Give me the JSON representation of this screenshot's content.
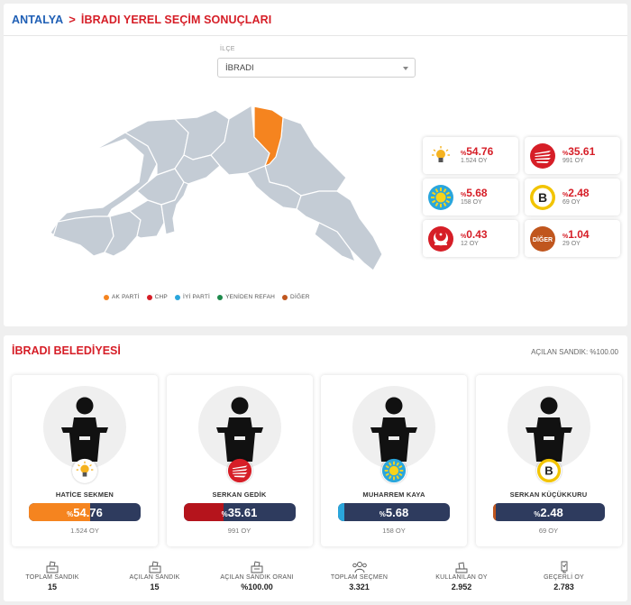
{
  "breadcrumb": {
    "city": "ANTALYA",
    "separator": ">",
    "title": "İBRADI YEREL SEÇİM SONUÇLARI"
  },
  "district": {
    "label": "İLÇE",
    "value": "İBRADI"
  },
  "legend": [
    {
      "label": "AK PARTİ",
      "color": "#f5841f"
    },
    {
      "label": "CHP",
      "color": "#d61e27"
    },
    {
      "label": "İYİ PARTİ",
      "color": "#2aa6dc"
    },
    {
      "label": "YENİDEN REFAH",
      "color": "#1e8a4c"
    },
    {
      "label": "DİĞER",
      "color": "#c0561e"
    }
  ],
  "parties": [
    {
      "pct": "54.76",
      "pct_prefix": "%",
      "votes": "1.524 OY",
      "logo": "ak-parti-logo",
      "color": "#f5841f"
    },
    {
      "pct": "35.61",
      "pct_prefix": "%",
      "votes": "991 OY",
      "logo": "chp-logo",
      "color": "#d61e27"
    },
    {
      "pct": "5.68",
      "pct_prefix": "%",
      "votes": "158 OY",
      "logo": "iyi-parti-logo",
      "color": "#2aa6dc"
    },
    {
      "pct": "2.48",
      "pct_prefix": "%",
      "votes": "69 OY",
      "logo": "b-party-logo",
      "color": "#e8b400",
      "logo_text": "B"
    },
    {
      "pct": "0.43",
      "pct_prefix": "%",
      "votes": "12 OY",
      "logo": "yeniden-refah-logo",
      "color": "#d61e27"
    },
    {
      "pct": "1.04",
      "pct_prefix": "%",
      "votes": "29 OY",
      "logo": "diger-logo",
      "color": "#c0561e",
      "logo_text": "DİĞER"
    }
  ],
  "municipality": {
    "title": "İBRADI BELEDİYESİ",
    "opened_boxes": "AÇILAN SANDIK: %100.00"
  },
  "candidates": [
    {
      "name": "HATİCE SEKMEN",
      "pct": "54.76",
      "pct_prefix": "%",
      "share": 54.76,
      "votes": "1.524 OY",
      "bar_color": "#f5841f",
      "logo": "ak-parti-logo"
    },
    {
      "name": "SERKAN GEDİK",
      "pct": "35.61",
      "pct_prefix": "%",
      "share": 35.61,
      "votes": "991 OY",
      "bar_color": "#b5141c",
      "logo": "chp-logo"
    },
    {
      "name": "MUHARREM KAYA",
      "pct": "5.68",
      "pct_prefix": "%",
      "share": 5.68,
      "votes": "158 OY",
      "bar_color": "#2aa6dc",
      "logo": "iyi-parti-logo"
    },
    {
      "name": "SERKAN KÜÇÜKKURU",
      "pct": "2.48",
      "pct_prefix": "%",
      "share": 2.48,
      "votes": "69 OY",
      "bar_color": "#c0561e",
      "logo": "b-party-logo",
      "logo_text": "B"
    }
  ],
  "stats": [
    {
      "label": "TOPLAM SANDIK",
      "value": "15",
      "icon": "ballot-box-icon"
    },
    {
      "label": "AÇILAN SANDIK",
      "value": "15",
      "icon": "ballot-box-icon"
    },
    {
      "label": "AÇILAN SANDIK ORANI",
      "value": "%100.00",
      "icon": "ballot-box-icon"
    },
    {
      "label": "TOPLAM SEÇMEN",
      "value": "3.321",
      "icon": "people-icon"
    },
    {
      "label": "KULLANILAN OY",
      "value": "2.952",
      "icon": "vote-cast-icon"
    },
    {
      "label": "GEÇERLİ OY",
      "value": "2.783",
      "icon": "valid-vote-icon"
    }
  ]
}
